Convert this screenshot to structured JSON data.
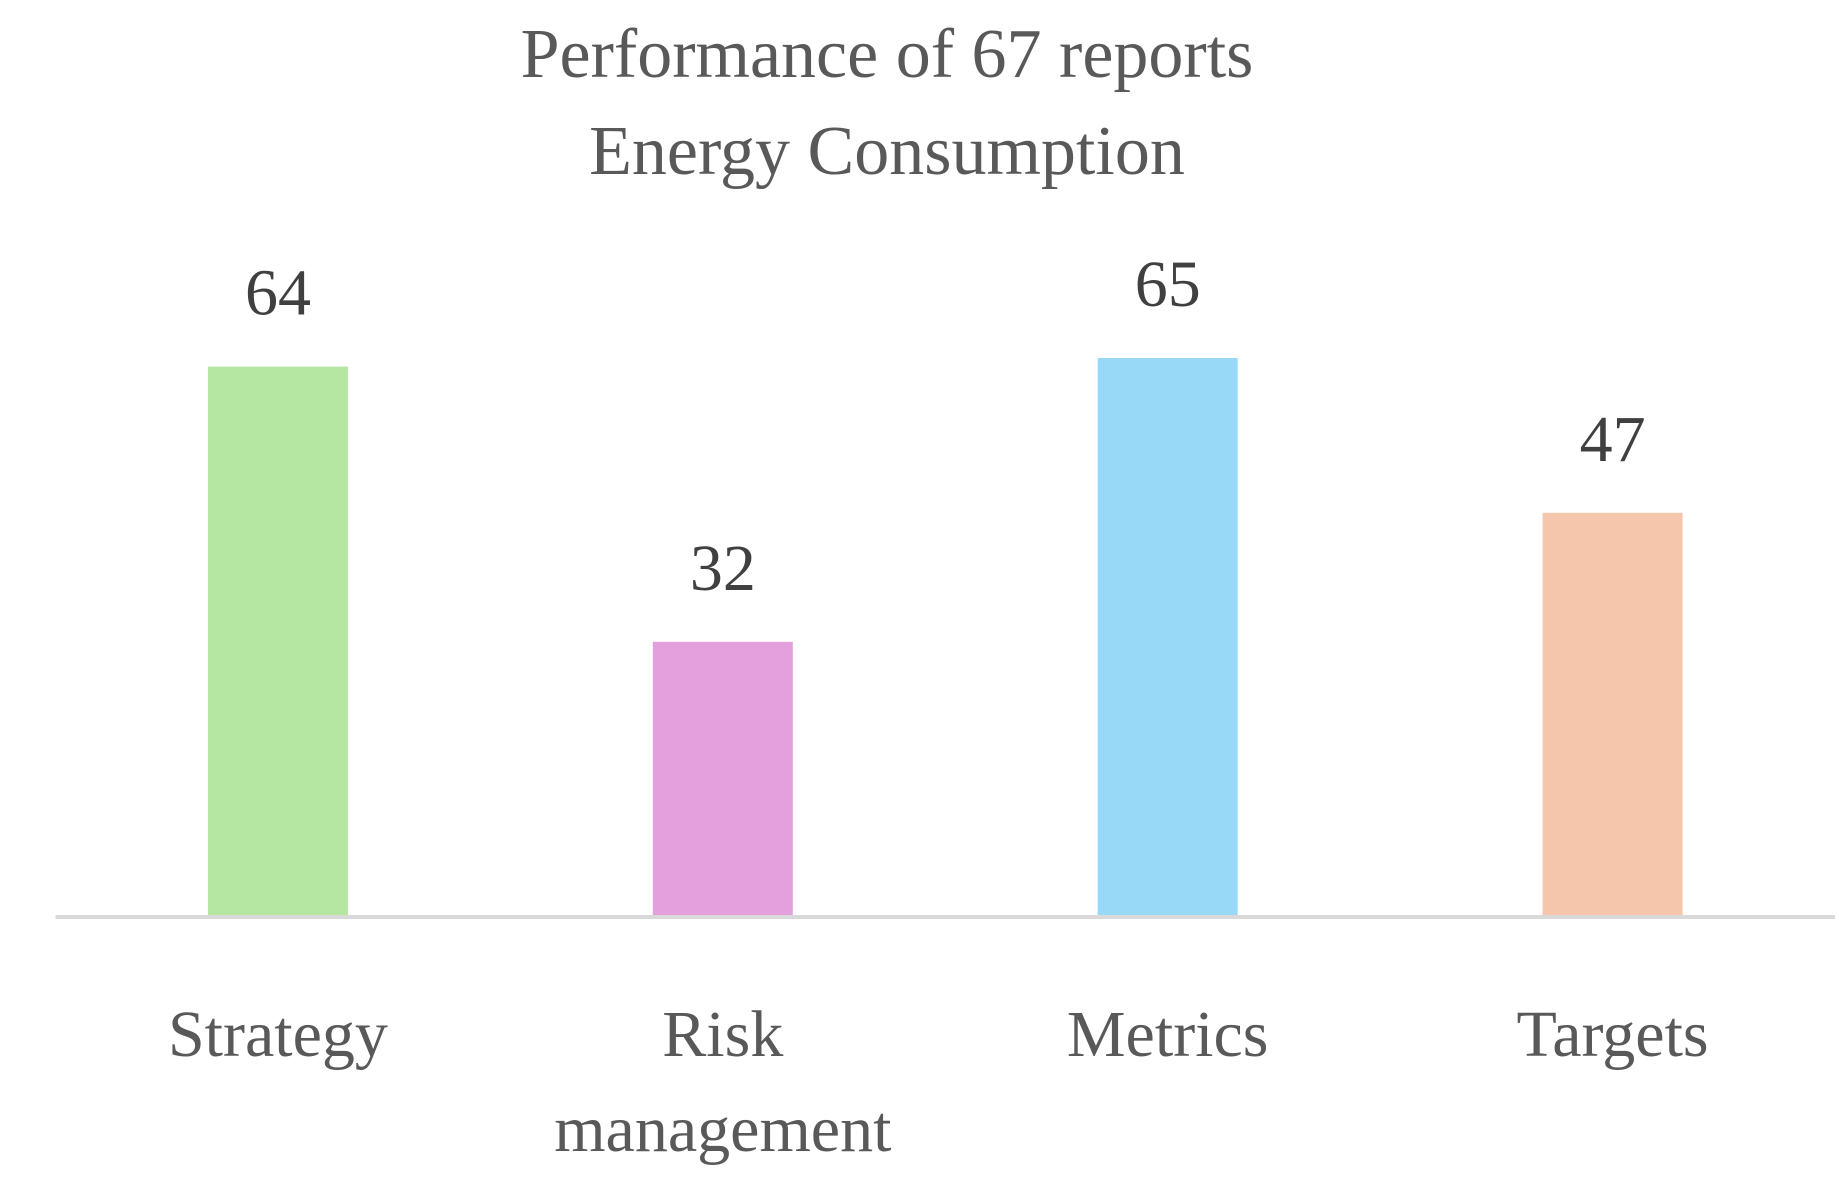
{
  "chart_data": {
    "type": "bar",
    "title": "Performance of 67 reports",
    "subtitle": "Energy Consumption",
    "categories": [
      "Strategy",
      "Risk management",
      "Metrics",
      "Targets"
    ],
    "values": [
      64,
      32,
      65,
      47
    ],
    "colors": [
      "#b5e6a2",
      "#e4a0dc",
      "#97d9f6",
      "#f5c6ab"
    ],
    "ylim": [
      0,
      70
    ]
  }
}
